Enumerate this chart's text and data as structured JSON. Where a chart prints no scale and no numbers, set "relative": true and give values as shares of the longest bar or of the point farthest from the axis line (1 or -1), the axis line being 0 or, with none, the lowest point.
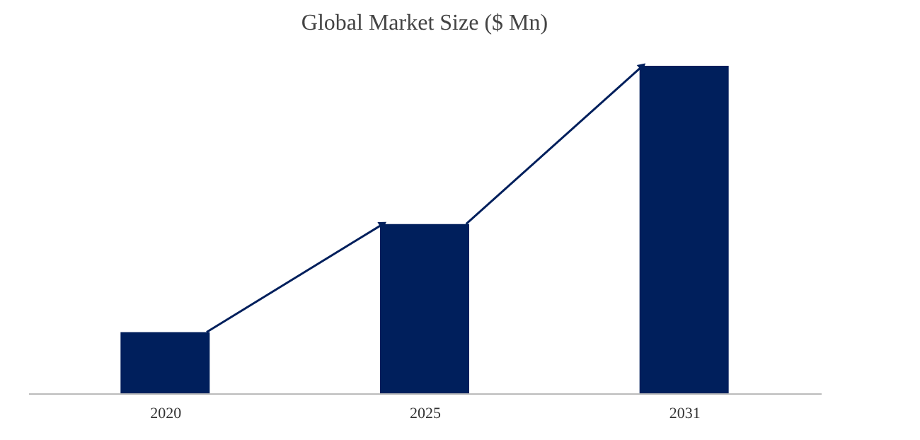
{
  "chart_data": {
    "type": "bar",
    "title": "Global Market Size ($ Mn)",
    "categories": [
      "2020",
      "2025",
      "2031"
    ],
    "values": [
      0.187,
      0.517,
      1
    ],
    "color": "#001f5c",
    "relative": true,
    "grid": false
  }
}
